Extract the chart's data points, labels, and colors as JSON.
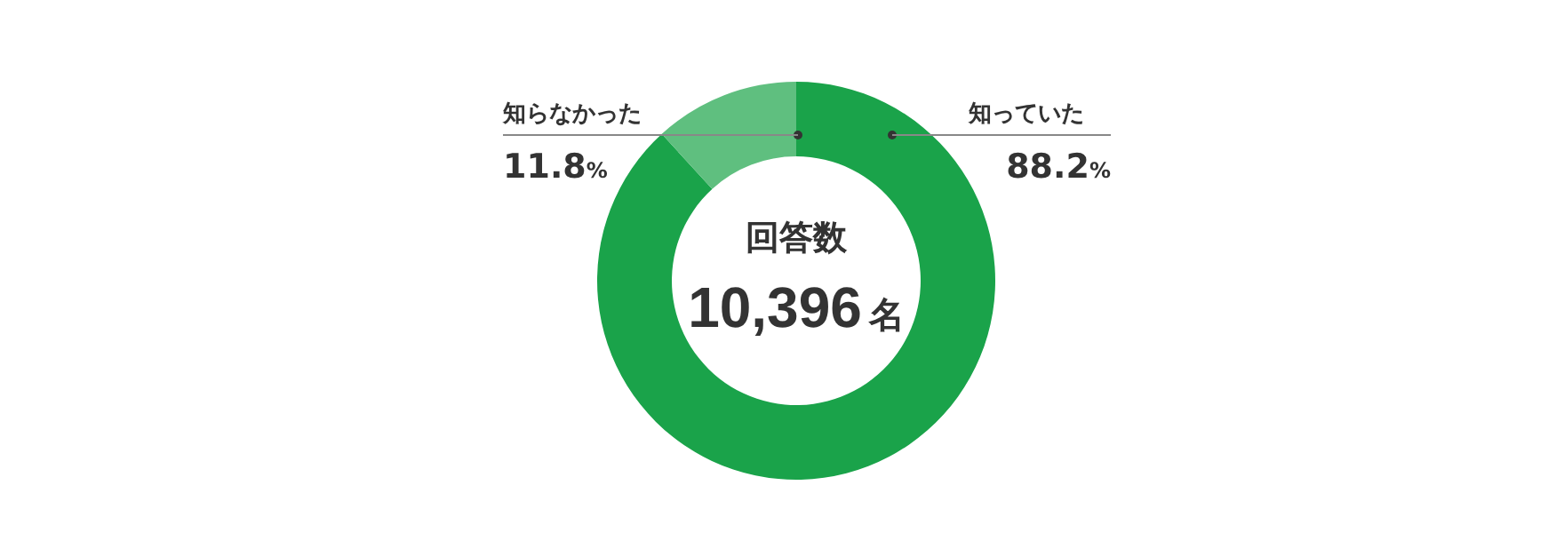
{
  "chart_data": {
    "type": "donut",
    "categories": [
      "知っていた",
      "知らなかった"
    ],
    "values": [
      88.2,
      11.8
    ],
    "colors": [
      "#1aa34a",
      "#5fbf7f"
    ],
    "value_labels": [
      "88.2%",
      "11.8%"
    ],
    "annotations": [
      "回答数",
      "10,396名"
    ],
    "legend": false
  }
}
